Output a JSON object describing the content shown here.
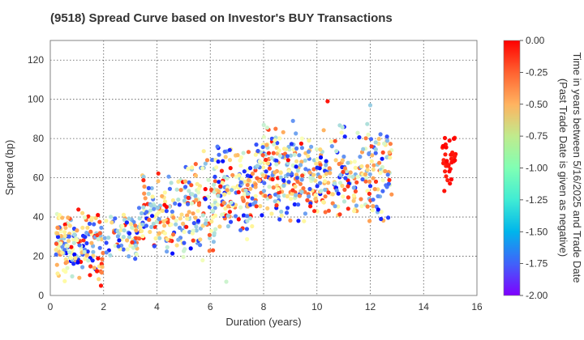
{
  "chart_data": {
    "type": "scatter",
    "title": "(9518)   Spread Curve based on Investor's BUY Transactions",
    "xlabel": "Duration (years)",
    "ylabel": "Spread (bp)",
    "xlim": [
      0,
      16
    ],
    "ylim": [
      0,
      130
    ],
    "xticks": [
      0,
      2,
      4,
      6,
      8,
      10,
      12,
      14,
      16
    ],
    "yticks": [
      0,
      20,
      40,
      60,
      80,
      100,
      120
    ],
    "grid": true,
    "colorbar": {
      "label_line1": "Time in years between 5/16/2025 and Trade Date",
      "label_line2": "(Past Trade Date is given as negative)",
      "range": [
        -2.0,
        0.0
      ],
      "ticks": [
        "0.00",
        "-0.25",
        "-0.50",
        "-0.75",
        "-1.00",
        "-1.25",
        "-1.50",
        "-1.75",
        "-2.00"
      ],
      "colormap": "rainbow"
    },
    "clusters": [
      {
        "x": [
          0.2,
          0.9
        ],
        "y": [
          5,
          45
        ],
        "n": 90,
        "t": [
          -2.0,
          0.0
        ]
      },
      {
        "x": [
          0.9,
          2.0
        ],
        "y": [
          5,
          45
        ],
        "n": 90,
        "t": [
          -2.0,
          0.0
        ]
      },
      {
        "x": [
          2.0,
          3.3
        ],
        "y": [
          15,
          45
        ],
        "n": 70,
        "t": [
          -2.0,
          0.0
        ]
      },
      {
        "x": [
          3.3,
          4.8
        ],
        "y": [
          15,
          65
        ],
        "n": 110,
        "t": [
          -2.0,
          0.0
        ]
      },
      {
        "x": [
          4.8,
          6.2
        ],
        "y": [
          15,
          75
        ],
        "n": 130,
        "t": [
          -2.0,
          0.0
        ]
      },
      {
        "x": [
          6.2,
          7.6
        ],
        "y": [
          25,
          80
        ],
        "n": 130,
        "t": [
          -2.0,
          0.0
        ]
      },
      {
        "x": [
          7.6,
          9.2
        ],
        "y": [
          35,
          90
        ],
        "n": 170,
        "t": [
          -2.0,
          0.0
        ]
      },
      {
        "x": [
          9.2,
          10.8
        ],
        "y": [
          35,
          85
        ],
        "n": 130,
        "t": [
          -2.0,
          0.0
        ]
      },
      {
        "x": [
          10.8,
          12.8
        ],
        "y": [
          35,
          90
        ],
        "n": 150,
        "t": [
          -2.0,
          0.0
        ]
      },
      {
        "x": [
          14.7,
          15.2
        ],
        "y": [
          53,
          86
        ],
        "n": 40,
        "t": [
          -0.1,
          0.0
        ]
      }
    ],
    "outliers": [
      {
        "x": 10.4,
        "y": 99,
        "t": -0.05
      },
      {
        "x": 12.0,
        "y": 97,
        "t": -1.4
      },
      {
        "x": 9.1,
        "y": 89,
        "t": -1.6
      },
      {
        "x": 1.9,
        "y": 5,
        "t": -0.05
      },
      {
        "x": 6.6,
        "y": 7,
        "t": -1.2
      },
      {
        "x": 12.4,
        "y": 39,
        "t": -1.9
      }
    ]
  }
}
